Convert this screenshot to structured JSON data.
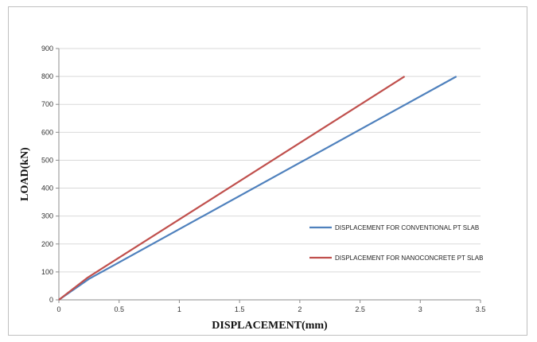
{
  "chart_data": {
    "type": "line",
    "title": "",
    "xlabel": "DISPLACEMENT(mm)",
    "ylabel": "LOAD(kN)",
    "xlim": [
      0,
      3.5
    ],
    "ylim": [
      0,
      900
    ],
    "xticks": [
      0,
      0.5,
      1,
      1.5,
      2,
      2.5,
      3,
      3.5
    ],
    "yticks": [
      0,
      100,
      200,
      300,
      400,
      500,
      600,
      700,
      800,
      900
    ],
    "xtick_labels": [
      "0",
      "0.5",
      "1",
      "1.5",
      "2",
      "2.5",
      "3",
      "3.5"
    ],
    "ytick_labels": [
      "0",
      "100",
      "200",
      "300",
      "400",
      "500",
      "600",
      "700",
      "800",
      "900"
    ],
    "grid": "horizontal",
    "legend_position": "right",
    "series": [
      {
        "name": "DISPLACEMENT FOR CONVENTIONAL PT SLAB",
        "color": "#4f81bd",
        "x": [
          0,
          0.25,
          3.3
        ],
        "y": [
          0,
          75,
          800
        ]
      },
      {
        "name": "DISPLACEMENT FOR NANOCONCRETE PT SLAB",
        "color": "#c0504d",
        "x": [
          0,
          0.24,
          2.87
        ],
        "y": [
          0,
          80,
          800
        ]
      }
    ]
  }
}
